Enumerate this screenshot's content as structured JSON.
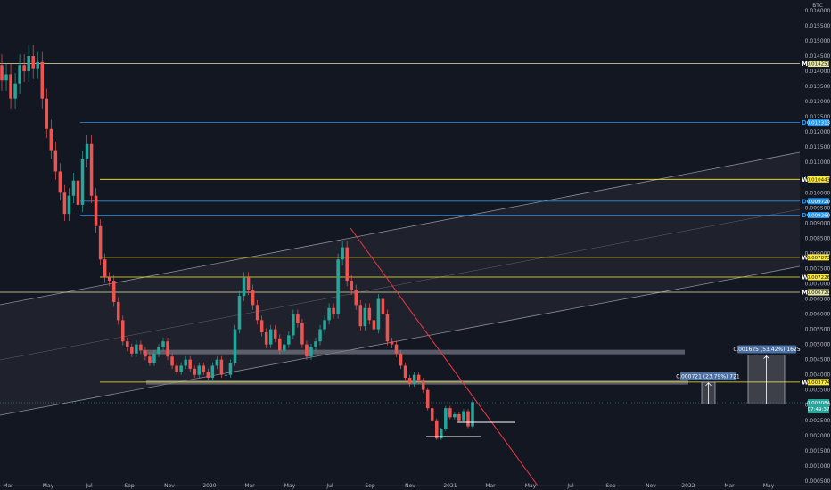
{
  "chart_data": {
    "type": "candlestick",
    "currency": "BTC",
    "x_ticks": [
      "Mar",
      "May",
      "Jul",
      "Sep",
      "Nov",
      "2020",
      "Mar",
      "May",
      "Jul",
      "Sep",
      "Nov",
      "2021",
      "Mar",
      "May",
      "Jul",
      "Sep",
      "Nov",
      "2022",
      "Mar",
      "May"
    ],
    "y_ticks": [
      0.016,
      0.0155,
      0.015,
      0.0145,
      0.014,
      0.0135,
      0.013,
      0.0125,
      0.012,
      0.0115,
      0.011,
      0.0105,
      0.01,
      0.0095,
      0.009,
      0.0085,
      0.008,
      0.0075,
      0.007,
      0.0065,
      0.006,
      0.0055,
      0.005,
      0.0045,
      0.004,
      0.0035,
      0.003,
      0.0025,
      0.002,
      0.0015,
      0.001,
      0.0005
    ],
    "ylim": [
      0.00035,
      0.01635
    ],
    "grid": false,
    "level_lines": [
      {
        "value": 0.01425,
        "label": "0.014251",
        "timeframe": "M",
        "color": "#e8e7a6",
        "tf_color": "#ffffff"
      },
      {
        "value": 0.01231,
        "label": "0.012313",
        "timeframe": "D",
        "color": "#2196f3",
        "tf_color": "#2196f3"
      },
      {
        "value": 0.01044,
        "label": "0.010443",
        "timeframe": "W",
        "color": "#ffeb3b",
        "tf_color": "#ffffff"
      },
      {
        "value": 0.00972,
        "label": "0.009720",
        "timeframe": "D",
        "color": "#2196f3",
        "tf_color": "#2196f3"
      },
      {
        "value": 0.00926,
        "label": "0.009260",
        "timeframe": "D",
        "color": "#2196f3",
        "tf_color": "#2196f3"
      },
      {
        "value": 0.00787,
        "label": "0.007873",
        "timeframe": "W",
        "color": "#ffeb3b",
        "tf_color": "#ffffff"
      },
      {
        "value": 0.00722,
        "label": "0.007226",
        "timeframe": "W",
        "color": "#ffeb3b",
        "tf_color": "#ffffff"
      },
      {
        "value": 0.00672,
        "label": "0.006720",
        "timeframe": "M",
        "color": "#e8e7a6",
        "tf_color": "#ffffff"
      },
      {
        "value": 0.00376,
        "label": "0.003774",
        "timeframe": "W",
        "color": "#ffeb3b",
        "tf_color": "#ffffff"
      }
    ],
    "current_price": {
      "value": 0.00308,
      "label": "0.003084",
      "countdown": "07:49:37",
      "color": "#26a69a"
    },
    "measurements": [
      {
        "text": "0.000721 (23.79%) 721",
        "from": 0.00303,
        "to": 0.00376
      },
      {
        "text": "0.001625 (53.42%) 1625",
        "from": 0.00303,
        "to": 0.00465
      }
    ],
    "support_zones": [
      0.00475,
      0.00375
    ],
    "candles": [
      [
        0.0142,
        0.0137
      ],
      [
        0.0137,
        0.0139
      ],
      [
        0.0139,
        0.0131
      ],
      [
        0.0131,
        0.0136
      ],
      [
        0.0136,
        0.0142
      ],
      [
        0.0142,
        0.014
      ],
      [
        0.014,
        0.0145
      ],
      [
        0.0145,
        0.0141
      ],
      [
        0.0141,
        0.0143
      ],
      [
        0.0143,
        0.0131
      ],
      [
        0.0131,
        0.0121
      ],
      [
        0.0121,
        0.0114
      ],
      [
        0.0114,
        0.0107
      ],
      [
        0.0107,
        0.01
      ],
      [
        0.01,
        0.0093
      ],
      [
        0.0093,
        0.0099
      ],
      [
        0.0099,
        0.0104
      ],
      [
        0.0104,
        0.0096
      ],
      [
        0.0096,
        0.0111
      ],
      [
        0.0111,
        0.0116
      ],
      [
        0.0116,
        0.0099
      ],
      [
        0.0099,
        0.0089
      ],
      [
        0.0089,
        0.0078
      ],
      [
        0.0078,
        0.0072
      ],
      [
        0.0072,
        0.0071
      ],
      [
        0.0071,
        0.0064
      ],
      [
        0.0064,
        0.0058
      ],
      [
        0.0058,
        0.0051
      ],
      [
        0.0051,
        0.0049
      ],
      [
        0.0049,
        0.0047
      ],
      [
        0.0047,
        0.005
      ],
      [
        0.005,
        0.0048
      ],
      [
        0.0048,
        0.0046
      ],
      [
        0.0046,
        0.0044
      ],
      [
        0.0044,
        0.0047
      ],
      [
        0.0047,
        0.0049
      ],
      [
        0.0049,
        0.0051
      ],
      [
        0.0051,
        0.0046
      ],
      [
        0.0046,
        0.0043
      ],
      [
        0.0043,
        0.0041
      ],
      [
        0.0041,
        0.0043
      ],
      [
        0.0043,
        0.0045
      ],
      [
        0.0045,
        0.0042
      ],
      [
        0.0042,
        0.004
      ],
      [
        0.004,
        0.0043
      ],
      [
        0.0043,
        0.0041
      ],
      [
        0.0041,
        0.0039
      ],
      [
        0.0039,
        0.0043
      ],
      [
        0.0043,
        0.0045
      ],
      [
        0.0045,
        0.004
      ],
      [
        0.004,
        0.004
      ],
      [
        0.004,
        0.0044
      ],
      [
        0.0044,
        0.0055
      ],
      [
        0.0055,
        0.0066
      ],
      [
        0.0066,
        0.0072
      ],
      [
        0.0072,
        0.0068
      ],
      [
        0.0068,
        0.0063
      ],
      [
        0.0063,
        0.0058
      ],
      [
        0.0058,
        0.0054
      ],
      [
        0.0054,
        0.005
      ],
      [
        0.005,
        0.0055
      ],
      [
        0.0055,
        0.0052
      ],
      [
        0.0052,
        0.0048
      ],
      [
        0.0048,
        0.005
      ],
      [
        0.005,
        0.0053
      ],
      [
        0.0053,
        0.006
      ],
      [
        0.006,
        0.0057
      ],
      [
        0.0057,
        0.005
      ],
      [
        0.005,
        0.0046
      ],
      [
        0.0046,
        0.0049
      ],
      [
        0.0049,
        0.0051
      ],
      [
        0.0051,
        0.0055
      ],
      [
        0.0055,
        0.0058
      ],
      [
        0.0058,
        0.0062
      ],
      [
        0.0062,
        0.006
      ],
      [
        0.006,
        0.0078
      ],
      [
        0.0078,
        0.0082
      ],
      [
        0.0082,
        0.0071
      ],
      [
        0.0071,
        0.0068
      ],
      [
        0.0068,
        0.0063
      ],
      [
        0.0063,
        0.0056
      ],
      [
        0.0056,
        0.0062
      ],
      [
        0.0062,
        0.0058
      ],
      [
        0.0058,
        0.0055
      ],
      [
        0.0055,
        0.0065
      ],
      [
        0.0065,
        0.006
      ],
      [
        0.006,
        0.0051
      ],
      [
        0.0051,
        0.005
      ],
      [
        0.005,
        0.0047
      ],
      [
        0.0047,
        0.0043
      ],
      [
        0.0043,
        0.0039
      ],
      [
        0.0039,
        0.0037
      ],
      [
        0.0037,
        0.004
      ],
      [
        0.004,
        0.0038
      ],
      [
        0.0038,
        0.0035
      ],
      [
        0.0035,
        0.0029
      ],
      [
        0.0029,
        0.0025
      ],
      [
        0.0025,
        0.0019
      ],
      [
        0.0019,
        0.0022
      ],
      [
        0.0022,
        0.0029
      ],
      [
        0.0029,
        0.0026
      ],
      [
        0.0026,
        0.0027
      ],
      [
        0.0027,
        0.0025
      ],
      [
        0.0025,
        0.0028
      ],
      [
        0.0028,
        0.0023
      ],
      [
        0.0023,
        0.0031
      ]
    ]
  }
}
